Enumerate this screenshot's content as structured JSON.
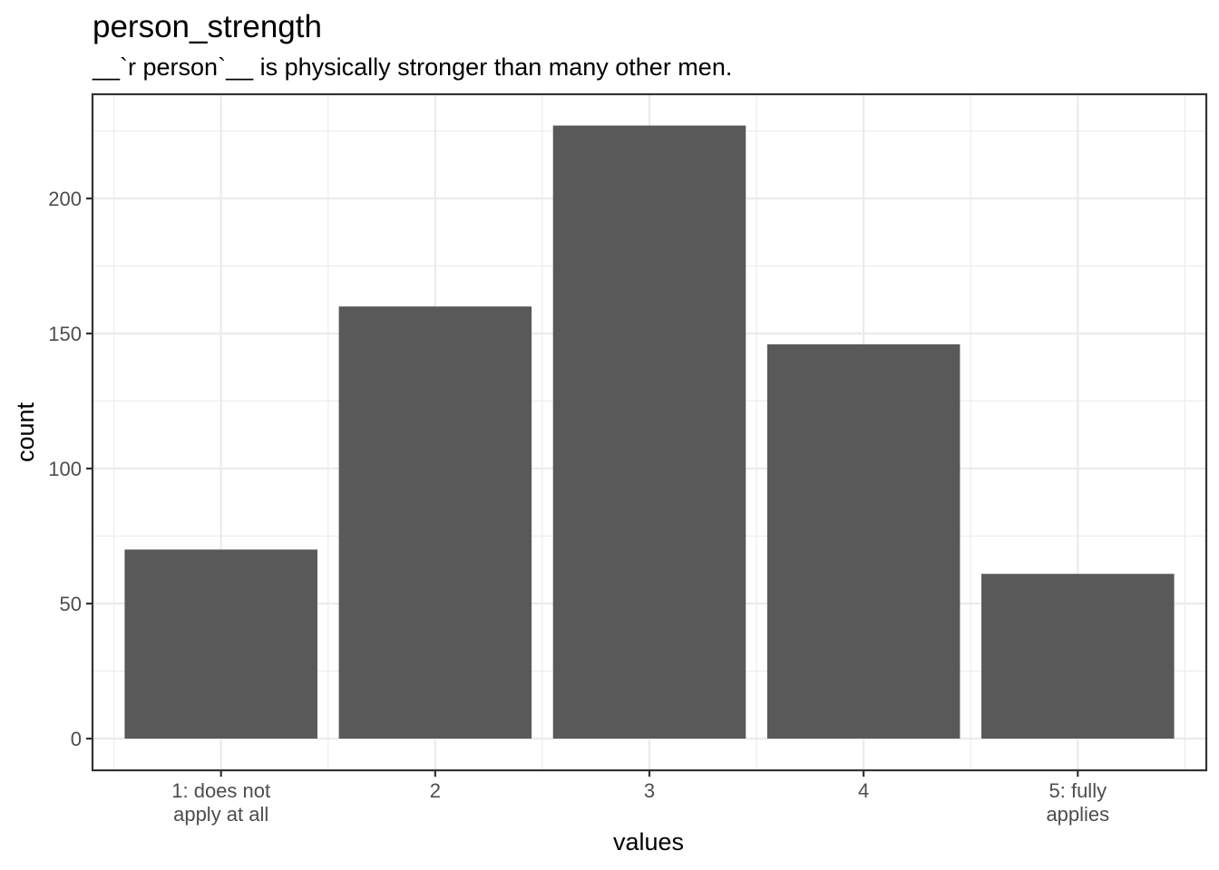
{
  "chart_data": {
    "type": "bar",
    "title": "person_strength",
    "subtitle": "__`r person`__ is physically stronger than many other men.",
    "xlabel": "values",
    "ylabel": "count",
    "categories": [
      [
        "1: does not",
        "apply at all"
      ],
      [
        "2"
      ],
      [
        "3"
      ],
      [
        "4"
      ],
      [
        "5: fully",
        "applies"
      ]
    ],
    "values": [
      70,
      160,
      227,
      146,
      61
    ],
    "ylim": [
      -11,
      227
    ],
    "yticks": [
      0,
      50,
      100,
      150,
      200
    ],
    "bar_color": "#595959",
    "grid": true,
    "legend": "none"
  }
}
